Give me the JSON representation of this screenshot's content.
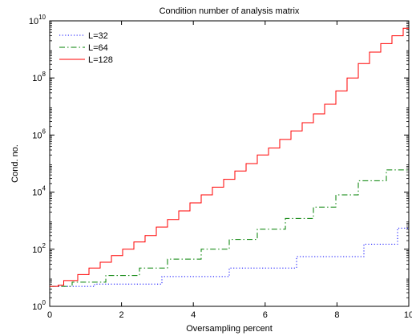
{
  "chart_data": {
    "type": "line",
    "title": "Condition number of analysis matrix",
    "xlabel": "Oversampling percent",
    "ylabel": "Cond. no.",
    "xlim": [
      0,
      10
    ],
    "ylim": [
      1,
      10000000000
    ],
    "yscale": "log",
    "grid": false,
    "legend_position": "top-left",
    "x_ticks": [
      0,
      2,
      4,
      6,
      8,
      10
    ],
    "x_tick_labels": [
      "0",
      "2",
      "4",
      "6",
      "8",
      "10"
    ],
    "y_ticks": [
      1,
      100,
      10000,
      1000000,
      100000000,
      10000000000
    ],
    "y_tick_labels": [
      {
        "base": "10",
        "exp": "0"
      },
      {
        "base": "10",
        "exp": "2"
      },
      {
        "base": "10",
        "exp": "4"
      },
      {
        "base": "10",
        "exp": "6"
      },
      {
        "base": "10",
        "exp": "8"
      },
      {
        "base": "10",
        "exp": "10"
      }
    ],
    "series": [
      {
        "name": "L=32",
        "color": "#0000ff",
        "style": "dotted",
        "step": true,
        "x": [
          0,
          0.313,
          0.625,
          0.938,
          1.25,
          1.563,
          1.875,
          2.188,
          2.5,
          2.813,
          3.125,
          3.438,
          3.75,
          4.063,
          4.375,
          4.688,
          5.0,
          5.313,
          5.625,
          5.938,
          6.25,
          6.563,
          6.875,
          7.188,
          7.5,
          7.813,
          8.125,
          8.438,
          8.75,
          9.063,
          9.375,
          9.688
        ],
        "y": [
          5,
          5,
          5,
          5,
          6,
          6,
          6,
          6,
          6,
          6,
          11,
          11,
          11,
          11,
          11,
          11,
          22,
          22,
          22,
          22,
          22,
          22,
          55,
          55,
          55,
          55,
          55,
          55,
          150,
          150,
          150,
          550
        ]
      },
      {
        "name": "L=64",
        "color": "#008000",
        "style": "dashdot",
        "step": true,
        "x": [
          0,
          0.156,
          0.313,
          0.469,
          0.625,
          0.781,
          0.938,
          1.094,
          1.25,
          1.406,
          1.563,
          1.719,
          1.875,
          2.031,
          2.188,
          2.344,
          2.5,
          2.656,
          2.813,
          2.969,
          3.125,
          3.281,
          3.438,
          3.594,
          3.75,
          3.906,
          4.063,
          4.219,
          4.375,
          4.531,
          4.688,
          4.844,
          5.0,
          5.156,
          5.313,
          5.469,
          5.625,
          5.781,
          5.938,
          6.094,
          6.25,
          6.406,
          6.563,
          6.719,
          6.875,
          7.031,
          7.188,
          7.344,
          7.5,
          7.656,
          7.813,
          7.969,
          8.125,
          8.281,
          8.438,
          8.594,
          8.75,
          8.906,
          9.063,
          9.219,
          9.375,
          9.531,
          9.688,
          9.844
        ],
        "y": [
          5,
          5,
          5,
          5,
          7,
          7,
          7,
          7,
          7,
          7,
          12,
          12,
          12,
          12,
          12,
          12,
          22,
          22,
          22,
          22,
          22,
          45,
          45,
          45,
          45,
          45,
          45,
          100,
          100,
          100,
          100,
          100,
          220,
          220,
          220,
          220,
          220,
          500,
          500,
          500,
          500,
          500,
          1200,
          1200,
          1200,
          1200,
          1200,
          3000,
          3000,
          3000,
          3000,
          8000,
          8000,
          8000,
          8000,
          25000,
          25000,
          25000,
          25000,
          25000,
          60000,
          60000,
          60000,
          60000
        ]
      },
      {
        "name": "L=128",
        "color": "#ff0000",
        "style": "solid",
        "step": true,
        "x": [
          0,
          0.234,
          0.391,
          0.625,
          0.781,
          0.938,
          1.094,
          1.25,
          1.406,
          1.563,
          1.719,
          1.875,
          2.031,
          2.188,
          2.344,
          2.5,
          2.656,
          2.813,
          2.969,
          3.125,
          3.281,
          3.438,
          3.594,
          3.75,
          3.906,
          4.063,
          4.219,
          4.375,
          4.531,
          4.688,
          4.844,
          5.0,
          5.156,
          5.313,
          5.469,
          5.625,
          5.781,
          5.938,
          6.094,
          6.25,
          6.406,
          6.563,
          6.719,
          6.875,
          7.031,
          7.188,
          7.344,
          7.5,
          7.656,
          7.813,
          7.969,
          8.125,
          8.281,
          8.438,
          8.594,
          8.75,
          8.906,
          9.063,
          9.219,
          9.375,
          9.531,
          9.688,
          9.844
        ],
        "y": [
          5,
          5.5,
          8,
          8,
          13,
          13,
          22,
          22,
          35,
          35,
          60,
          60,
          100,
          100,
          180,
          180,
          300,
          300,
          600,
          600,
          1100,
          1100,
          2200,
          2200,
          4200,
          4200,
          8000,
          8000,
          15000,
          15000,
          28000,
          28000,
          55000,
          55000,
          100000,
          100000,
          200000,
          200000,
          350000,
          350000,
          700000,
          700000,
          1400000,
          1400000,
          2700000,
          2700000,
          5500000,
          5500000,
          12000000,
          12000000,
          35000000,
          35000000,
          100000000,
          100000000,
          320000000,
          320000000,
          800000000,
          800000000,
          1600000000,
          1600000000,
          3000000000,
          3000000000,
          5500000000
        ]
      }
    ]
  }
}
